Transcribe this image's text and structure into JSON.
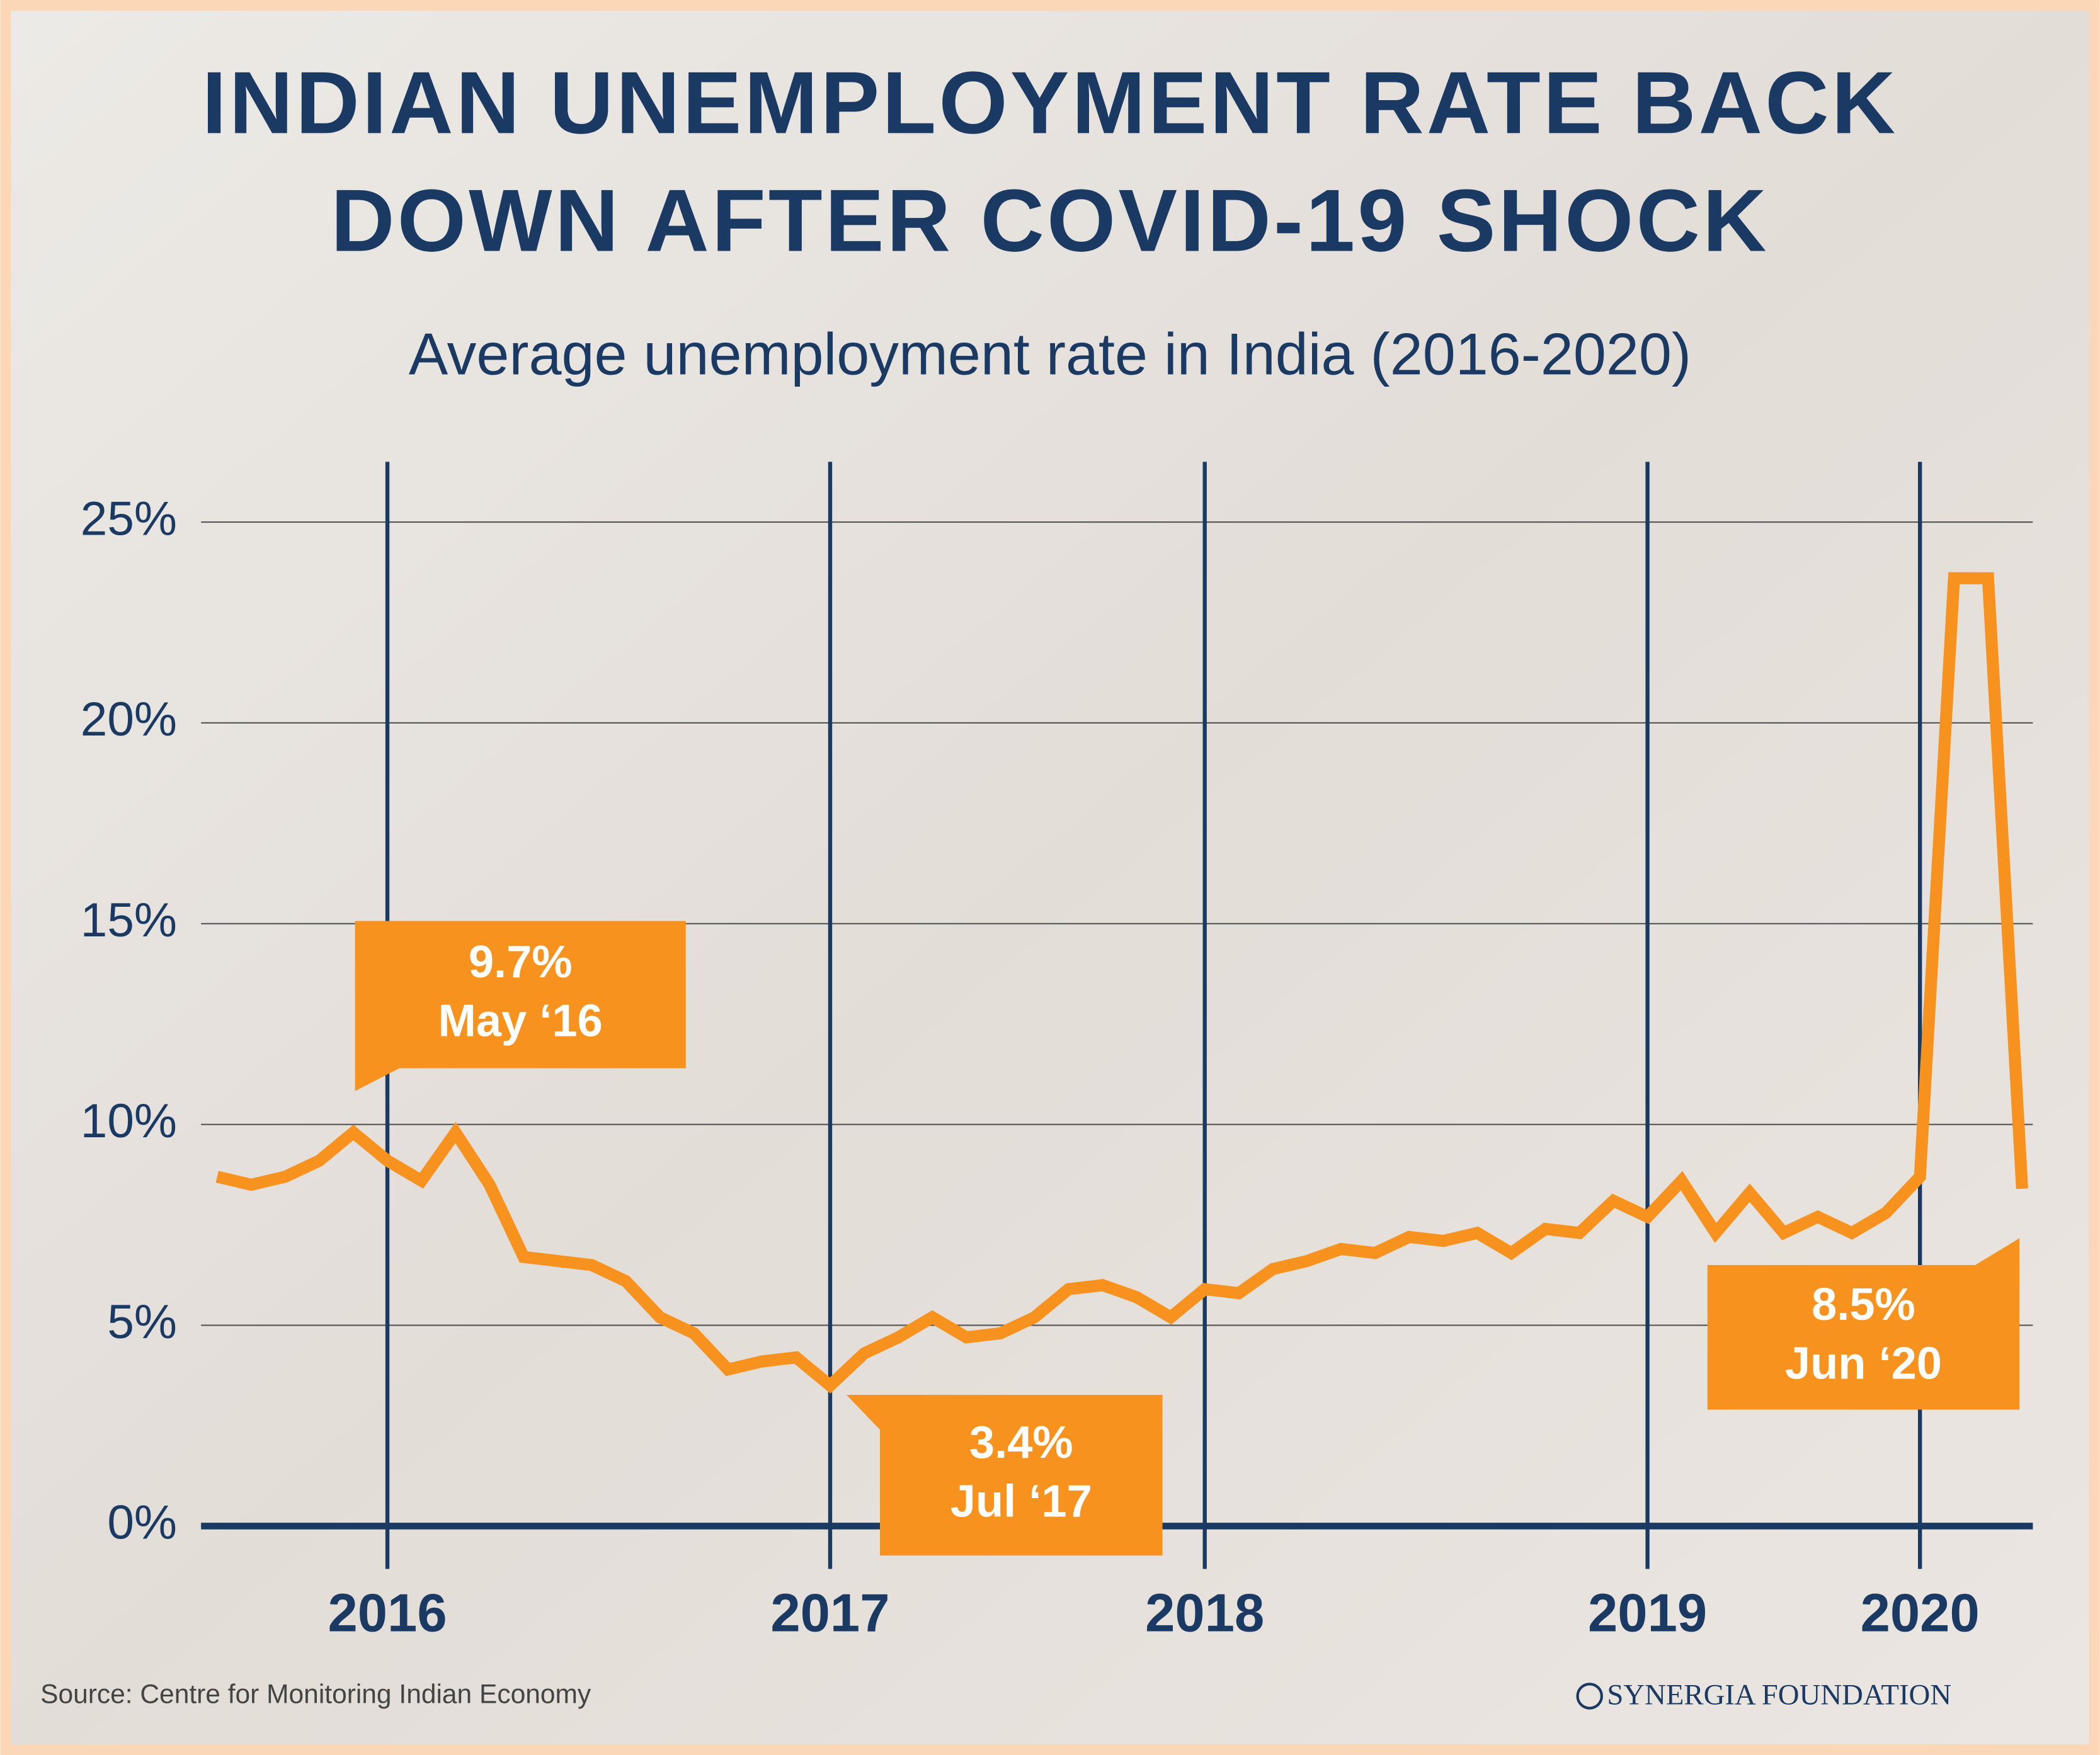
{
  "chart_data": {
    "type": "line",
    "title": [
      "INDIAN UNEMPLOYMENT RATE BACK",
      "DOWN AFTER COVID-19 SHOCK"
    ],
    "subtitle": "Average unemployment rate in India (2016-2020)",
    "categories": [
      null,
      null,
      null,
      null,
      null,
      "2016",
      null,
      null,
      null,
      null,
      null,
      null,
      null,
      null,
      null,
      null,
      null,
      null,
      "2017",
      null,
      null,
      null,
      null,
      null,
      null,
      null,
      null,
      null,
      null,
      "2018",
      null,
      null,
      null,
      null,
      null,
      null,
      null,
      null,
      null,
      null,
      null,
      null,
      "2019",
      null,
      null,
      null,
      null,
      null,
      null,
      null,
      "2020",
      null,
      null,
      null
    ],
    "values": [
      8.7,
      8.5,
      8.7,
      9.1,
      9.8,
      9.1,
      8.6,
      9.8,
      8.5,
      6.7,
      6.6,
      6.5,
      6.1,
      5.2,
      4.8,
      3.9,
      4.1,
      4.2,
      3.5,
      4.3,
      4.7,
      5.2,
      4.7,
      4.8,
      5.2,
      5.9,
      6.0,
      5.7,
      5.2,
      5.9,
      5.8,
      6.4,
      6.6,
      6.9,
      6.8,
      7.2,
      7.1,
      7.3,
      6.8,
      7.4,
      7.3,
      8.1,
      7.7,
      8.6,
      7.3,
      8.3,
      7.3,
      7.7,
      7.3,
      7.8,
      8.7,
      23.6,
      23.6,
      8.4
    ],
    "color": "#f7921e",
    "ylim": [
      0,
      25
    ],
    "yticks": [
      {
        "value": 0,
        "label": "0%"
      },
      {
        "value": 5,
        "label": "5%"
      },
      {
        "value": 10,
        "label": "10%"
      },
      {
        "value": 15,
        "label": "15%"
      },
      {
        "value": 20,
        "label": "20%"
      },
      {
        "value": 25,
        "label": "25%"
      }
    ],
    "grid": true,
    "annotations": [
      [
        "9.7%",
        "May ‘16"
      ],
      [
        "3.4%",
        "Jul ‘17"
      ],
      [
        "8.5%",
        "Jun ‘20"
      ]
    ],
    "source": "Source: Centre for Monitoring Indian Economy",
    "brand": "SYNERGIA FOUNDATION"
  }
}
